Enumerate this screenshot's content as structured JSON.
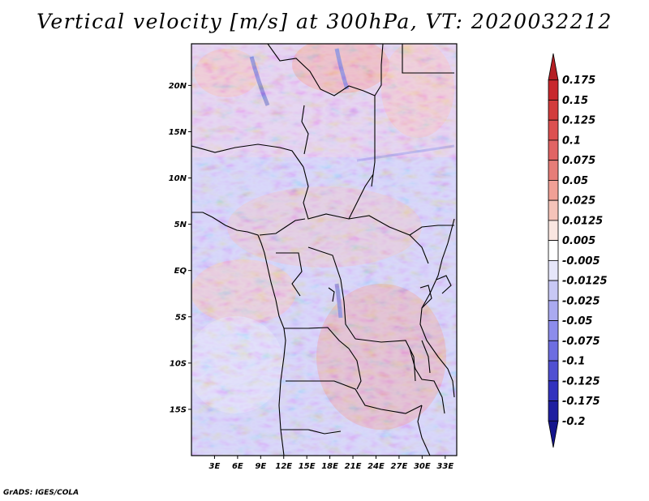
{
  "title": "Vertical velocity [m/s] at 300hPa, VT: 2020032212",
  "credit": "GrADS: IGES/COLA",
  "map": {
    "lat_labels": [
      "20N",
      "15N",
      "10N",
      "5N",
      "EQ",
      "5S",
      "10S",
      "15S"
    ],
    "lat_values": [
      20,
      15,
      10,
      5,
      0,
      -5,
      -10,
      -15
    ],
    "lon_labels": [
      "3E",
      "6E",
      "9E",
      "12E",
      "15E",
      "18E",
      "21E",
      "24E",
      "27E",
      "30E",
      "33E"
    ],
    "lon_values": [
      3,
      6,
      9,
      12,
      15,
      18,
      21,
      24,
      27,
      30,
      33
    ],
    "lon_range": [
      0,
      34.5
    ],
    "lat_range": [
      -20,
      24.5
    ]
  },
  "colorbar": {
    "levels": [
      "0.175",
      "0.15",
      "0.125",
      "0.1",
      "0.075",
      "0.05",
      "0.025",
      "0.0125",
      "0.005",
      "-0.005",
      "-0.0125",
      "-0.025",
      "-0.05",
      "-0.075",
      "-0.1",
      "-0.125",
      "-0.175",
      "-0.2"
    ],
    "colors": [
      "#b41e23",
      "#c8282d",
      "#d23c3c",
      "#dc5050",
      "#e16464",
      "#e67d78",
      "#f0a096",
      "#f5c3b9",
      "#fae6e1",
      "#ffffff",
      "#e6e6fa",
      "#c8c8f5",
      "#aaaaf0",
      "#8c8ceb",
      "#6e6ee1",
      "#5050d2",
      "#3232be",
      "#1e1ea0",
      "#14148c"
    ]
  },
  "colors": {
    "border": "#000000",
    "background": "#ffffff"
  }
}
